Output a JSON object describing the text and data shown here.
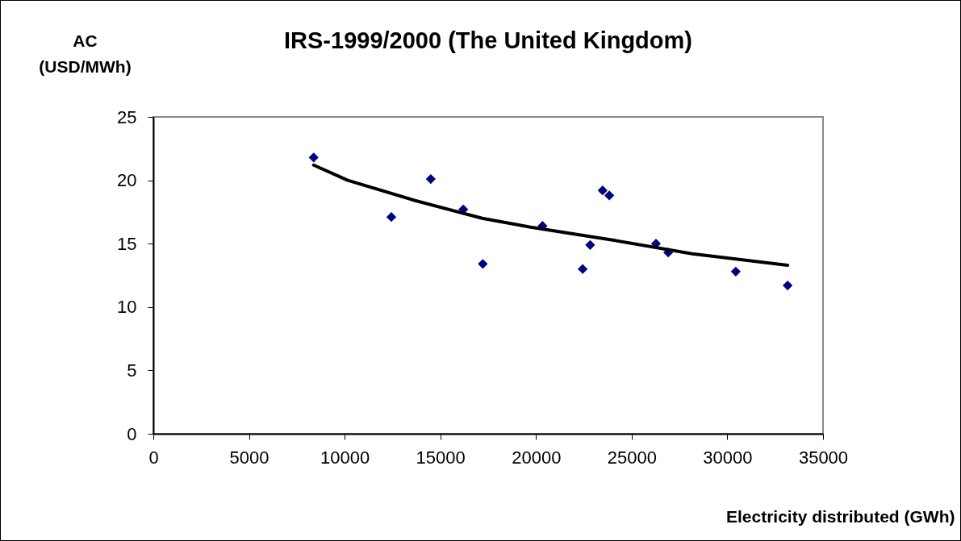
{
  "chart_data": {
    "type": "scatter",
    "title": "IRS-1999/2000 (The United Kingdom)",
    "xlabel": "Electricity distributed (GWh)",
    "ylabel": "AC (USD/MWh)",
    "xlim": [
      0,
      35000
    ],
    "xticks": [
      0,
      5000,
      10000,
      15000,
      20000,
      25000,
      30000,
      35000
    ],
    "ylim": [
      0,
      25
    ],
    "yticks": [
      0,
      5,
      10,
      15,
      20,
      25
    ],
    "series": [
      {
        "color": "#000080",
        "marker": "diamond",
        "x": [
          8380,
          12440,
          14500,
          16200,
          17220,
          20340,
          22440,
          22830,
          23480,
          23830,
          26270,
          26910,
          30440,
          33150
        ],
        "values": [
          21.8,
          17.1,
          20.1,
          17.7,
          13.4,
          16.4,
          13.0,
          14.9,
          19.2,
          18.8,
          15.0,
          14.3,
          12.8,
          11.7
        ]
      },
      {
        "type": "line",
        "color": "#000000",
        "marker": "none",
        "x": [
          8380,
          10160,
          13680,
          17190,
          19720,
          23940,
          28160,
          33150
        ],
        "values": [
          21.2,
          20.0,
          18.4,
          17.0,
          16.3,
          15.3,
          14.2,
          13.3
        ]
      }
    ]
  }
}
